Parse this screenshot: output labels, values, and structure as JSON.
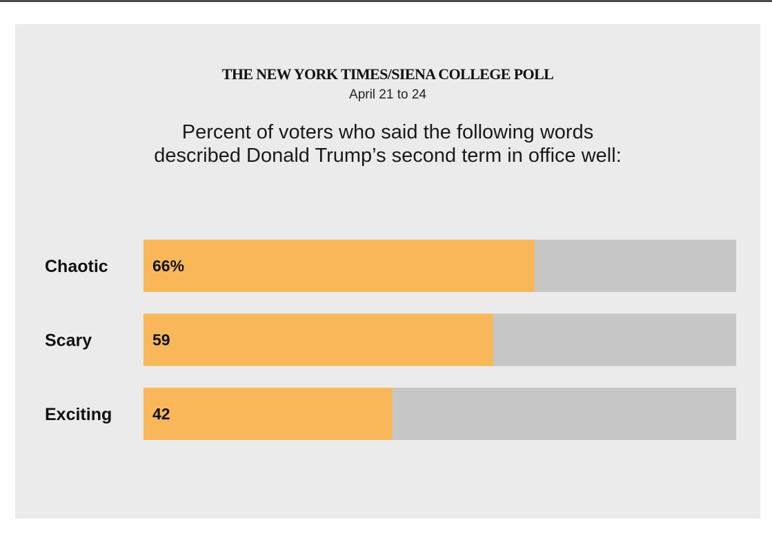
{
  "header": {
    "masthead": "THE NEW YORK TIMES/SIENA COLLEGE POLL",
    "dates": "April 21 to 24",
    "question_lines": [
      "Percent of voters who said the following words",
      "described Donald Trump’s second term in office well:"
    ]
  },
  "colors": {
    "bar": "#f8b85a",
    "track": "#c6c6c6",
    "background": "#ebebeb"
  },
  "chart_data": {
    "type": "bar",
    "orientation": "horizontal",
    "categories": [
      "Chaotic",
      "Scary",
      "Exciting"
    ],
    "values": [
      66,
      59,
      42
    ],
    "value_labels": [
      "66%",
      "59",
      "42"
    ],
    "xlim": [
      0,
      100
    ],
    "grid": false,
    "legend": "none"
  }
}
